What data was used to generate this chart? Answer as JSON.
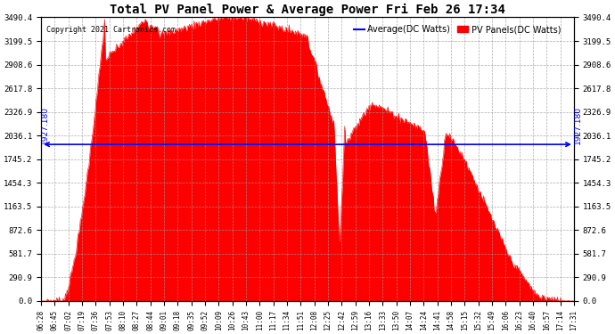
{
  "title": "Total PV Panel Power & Average Power Fri Feb 26 17:34",
  "copyright": "Copyright 2021 Cartronics.com",
  "legend_avg": "Average(DC Watts)",
  "legend_pv": "PV Panels(DC Watts)",
  "avg_value": 1927.18,
  "y_max": 3490.4,
  "y_ticks": [
    0.0,
    290.9,
    581.7,
    872.6,
    1163.5,
    1454.3,
    1745.2,
    2036.1,
    2326.9,
    2617.8,
    2908.6,
    3199.5,
    3490.4
  ],
  "avg_label": "1927.180",
  "bg_color": "#ffffff",
  "fill_color": "#ff0000",
  "avg_line_color": "#0000ff",
  "grid_color": "#999999",
  "title_color": "#000000",
  "copyright_color": "#000000",
  "x_tick_labels": [
    "06:28",
    "06:45",
    "07:02",
    "07:19",
    "07:36",
    "07:53",
    "08:10",
    "08:27",
    "08:44",
    "09:01",
    "09:18",
    "09:35",
    "09:52",
    "10:09",
    "10:26",
    "10:43",
    "11:00",
    "11:17",
    "11:34",
    "11:51",
    "12:08",
    "12:25",
    "12:42",
    "12:59",
    "13:16",
    "13:33",
    "13:50",
    "14:07",
    "14:24",
    "14:41",
    "14:58",
    "15:15",
    "15:32",
    "15:49",
    "16:06",
    "16:23",
    "16:40",
    "16:57",
    "17:14",
    "17:31"
  ]
}
